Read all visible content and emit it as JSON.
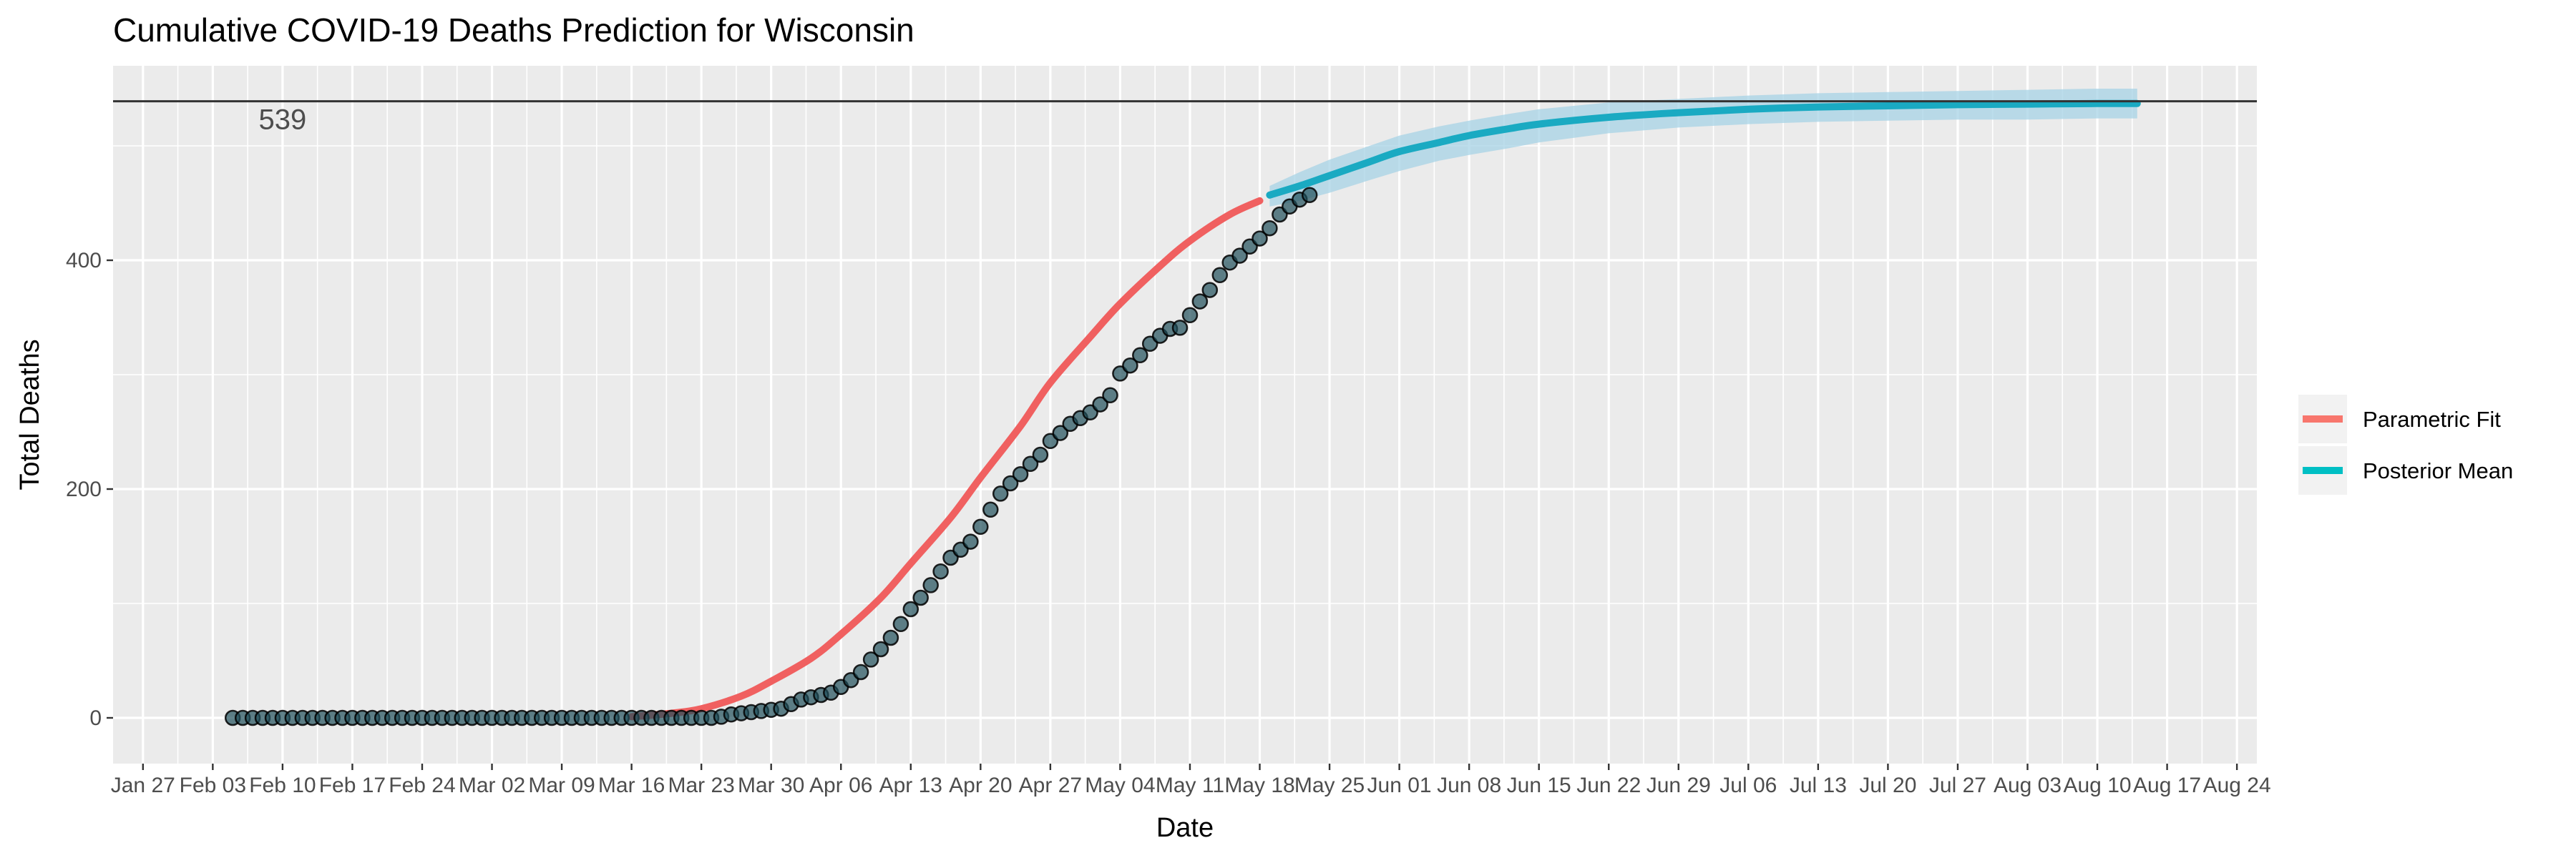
{
  "chart_data": {
    "type": "line",
    "title": "Cumulative COVID-19 Deaths Prediction for Wisconsin",
    "xlabel": "Date",
    "ylabel": "Total Deaths",
    "x_range": [
      "2020-01-24",
      "2020-08-26"
    ],
    "ylim": [
      -40,
      570
    ],
    "y_ticks": [
      0,
      200,
      400
    ],
    "x_ticks": [
      {
        "date": "2020-01-27",
        "label": "Jan 27"
      },
      {
        "date": "2020-02-03",
        "label": "Feb 03"
      },
      {
        "date": "2020-02-10",
        "label": "Feb 10"
      },
      {
        "date": "2020-02-17",
        "label": "Feb 17"
      },
      {
        "date": "2020-02-24",
        "label": "Feb 24"
      },
      {
        "date": "2020-03-02",
        "label": "Mar 02"
      },
      {
        "date": "2020-03-09",
        "label": "Mar 09"
      },
      {
        "date": "2020-03-16",
        "label": "Mar 16"
      },
      {
        "date": "2020-03-23",
        "label": "Mar 23"
      },
      {
        "date": "2020-03-30",
        "label": "Mar 30"
      },
      {
        "date": "2020-04-06",
        "label": "Apr 06"
      },
      {
        "date": "2020-04-13",
        "label": "Apr 13"
      },
      {
        "date": "2020-04-20",
        "label": "Apr 20"
      },
      {
        "date": "2020-04-27",
        "label": "Apr 27"
      },
      {
        "date": "2020-05-04",
        "label": "May 04"
      },
      {
        "date": "2020-05-11",
        "label": "May 11"
      },
      {
        "date": "2020-05-18",
        "label": "May 18"
      },
      {
        "date": "2020-05-25",
        "label": "May 25"
      },
      {
        "date": "2020-06-01",
        "label": "Jun 01"
      },
      {
        "date": "2020-06-08",
        "label": "Jun 08"
      },
      {
        "date": "2020-06-15",
        "label": "Jun 15"
      },
      {
        "date": "2020-06-22",
        "label": "Jun 22"
      },
      {
        "date": "2020-06-29",
        "label": "Jun 29"
      },
      {
        "date": "2020-07-06",
        "label": "Jul 06"
      },
      {
        "date": "2020-07-13",
        "label": "Jul 13"
      },
      {
        "date": "2020-07-20",
        "label": "Jul 20"
      },
      {
        "date": "2020-07-27",
        "label": "Jul 27"
      },
      {
        "date": "2020-08-03",
        "label": "Aug 03"
      },
      {
        "date": "2020-08-10",
        "label": "Aug 10"
      },
      {
        "date": "2020-08-17",
        "label": "Aug 17"
      },
      {
        "date": "2020-08-24",
        "label": "Aug 24"
      }
    ],
    "reference_line": {
      "y": 539,
      "label": "539",
      "color": "#333333"
    },
    "grid": true,
    "legend": {
      "position": "right",
      "entries": [
        {
          "name": "Parametric Fit",
          "color": "#F8766D"
        },
        {
          "name": "Posterior Mean",
          "color": "#00BFC4"
        }
      ]
    },
    "colors": {
      "panel": "#EBEBEB",
      "grid": "#FFFFFF",
      "points": "#1f4e5a",
      "band": "#a7d3e6",
      "posterior": "#1AAAC2",
      "parametric": "#F06060"
    },
    "observed": {
      "start_date": "2020-02-05",
      "end_date": "2020-05-19",
      "values": [
        0,
        0,
        0,
        0,
        0,
        0,
        0,
        0,
        0,
        0,
        0,
        0,
        0,
        0,
        0,
        0,
        0,
        0,
        0,
        0,
        0,
        0,
        0,
        0,
        0,
        0,
        0,
        0,
        0,
        0,
        0,
        0,
        0,
        0,
        0,
        0,
        0,
        0,
        0,
        0,
        0,
        0,
        0,
        0,
        0,
        0,
        0,
        0,
        0,
        1,
        3,
        4,
        5,
        6,
        7,
        8,
        12,
        16,
        18,
        20,
        22,
        27,
        33,
        40,
        51,
        60,
        70,
        82,
        95,
        105,
        116,
        128,
        140,
        147,
        154,
        167,
        182,
        196,
        205,
        213,
        222,
        230,
        242,
        249,
        257,
        262,
        267,
        274,
        282,
        301,
        308,
        317,
        327,
        334,
        340,
        341,
        352,
        364,
        374,
        387,
        398,
        404,
        412,
        419,
        428,
        440,
        447,
        453,
        457
      ]
    },
    "parametric_fit": [
      {
        "date": "2020-03-16",
        "y": 1
      },
      {
        "date": "2020-03-20",
        "y": 4
      },
      {
        "date": "2020-03-23",
        "y": 8
      },
      {
        "date": "2020-03-27",
        "y": 19
      },
      {
        "date": "2020-03-30",
        "y": 32
      },
      {
        "date": "2020-04-03",
        "y": 52
      },
      {
        "date": "2020-04-06",
        "y": 73
      },
      {
        "date": "2020-04-10",
        "y": 105
      },
      {
        "date": "2020-04-13",
        "y": 135
      },
      {
        "date": "2020-04-17",
        "y": 175
      },
      {
        "date": "2020-04-20",
        "y": 210
      },
      {
        "date": "2020-04-24",
        "y": 255
      },
      {
        "date": "2020-04-27",
        "y": 293
      },
      {
        "date": "2020-05-01",
        "y": 333
      },
      {
        "date": "2020-05-04",
        "y": 362
      },
      {
        "date": "2020-05-08",
        "y": 395
      },
      {
        "date": "2020-05-11",
        "y": 417
      },
      {
        "date": "2020-05-15",
        "y": 440
      },
      {
        "date": "2020-05-18",
        "y": 452
      }
    ],
    "posterior_mean": [
      {
        "date": "2020-05-19",
        "y": 457
      },
      {
        "date": "2020-05-22",
        "y": 465
      },
      {
        "date": "2020-05-25",
        "y": 474
      },
      {
        "date": "2020-05-29",
        "y": 486
      },
      {
        "date": "2020-06-01",
        "y": 495
      },
      {
        "date": "2020-06-05",
        "y": 503
      },
      {
        "date": "2020-06-08",
        "y": 509
      },
      {
        "date": "2020-06-12",
        "y": 515
      },
      {
        "date": "2020-06-15",
        "y": 519
      },
      {
        "date": "2020-06-22",
        "y": 525
      },
      {
        "date": "2020-06-29",
        "y": 529
      },
      {
        "date": "2020-07-06",
        "y": 532
      },
      {
        "date": "2020-07-13",
        "y": 534
      },
      {
        "date": "2020-07-20",
        "y": 535
      },
      {
        "date": "2020-07-27",
        "y": 536
      },
      {
        "date": "2020-08-03",
        "y": 536.5
      },
      {
        "date": "2020-08-10",
        "y": 537
      },
      {
        "date": "2020-08-14",
        "y": 537
      }
    ],
    "posterior_band": [
      {
        "date": "2020-05-19",
        "lo": 447,
        "hi": 465
      },
      {
        "date": "2020-05-22",
        "lo": 452,
        "hi": 477
      },
      {
        "date": "2020-05-25",
        "lo": 459,
        "hi": 488
      },
      {
        "date": "2020-05-29",
        "lo": 470,
        "hi": 500
      },
      {
        "date": "2020-06-01",
        "lo": 478,
        "hi": 509
      },
      {
        "date": "2020-06-05",
        "lo": 487,
        "hi": 517
      },
      {
        "date": "2020-06-08",
        "lo": 492,
        "hi": 522
      },
      {
        "date": "2020-06-12",
        "lo": 498,
        "hi": 528
      },
      {
        "date": "2020-06-15",
        "lo": 503,
        "hi": 532
      },
      {
        "date": "2020-06-22",
        "lo": 511,
        "hi": 538
      },
      {
        "date": "2020-06-29",
        "lo": 516,
        "hi": 541
      },
      {
        "date": "2020-07-06",
        "lo": 519,
        "hi": 544
      },
      {
        "date": "2020-07-13",
        "lo": 521,
        "hi": 546
      },
      {
        "date": "2020-07-20",
        "lo": 522,
        "hi": 547
      },
      {
        "date": "2020-07-27",
        "lo": 523,
        "hi": 548
      },
      {
        "date": "2020-08-03",
        "lo": 523,
        "hi": 549
      },
      {
        "date": "2020-08-10",
        "lo": 524,
        "hi": 550
      },
      {
        "date": "2020-08-14",
        "lo": 524,
        "hi": 550
      }
    ]
  }
}
